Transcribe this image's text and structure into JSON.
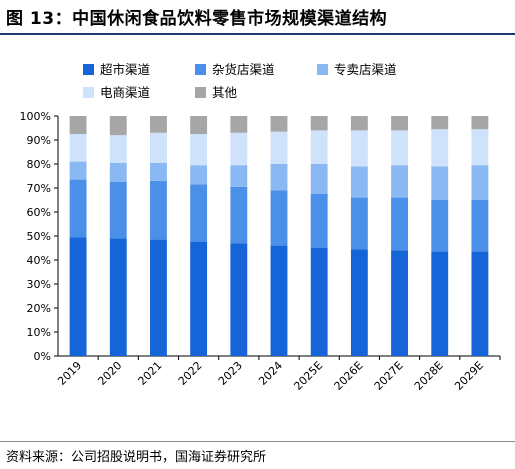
{
  "figure": {
    "title": "图 13：中国休闲食品饮料零售市场规模渠道结构",
    "source": "资料来源：公司招股说明书，国海证券研究所"
  },
  "chart_data": {
    "type": "bar",
    "stacked": true,
    "categories": [
      "2019",
      "2020",
      "2021",
      "2022",
      "2023",
      "2024",
      "2025E",
      "2026E",
      "2027E",
      "2028E",
      "2029E"
    ],
    "ylim": [
      0,
      100
    ],
    "y_ticks": [
      "0%",
      "10%",
      "20%",
      "30%",
      "40%",
      "50%",
      "60%",
      "70%",
      "80%",
      "90%",
      "100%"
    ],
    "legend_position": "top",
    "grid": false,
    "series": [
      {
        "name": "超市渠道",
        "color": "#1565d8",
        "values": [
          49.5,
          49.0,
          48.5,
          47.5,
          47.0,
          46.0,
          45.0,
          44.5,
          44.0,
          43.5,
          43.5
        ]
      },
      {
        "name": "杂货店渠道",
        "color": "#4a90e8",
        "values": [
          24.0,
          23.5,
          24.5,
          24.0,
          23.5,
          23.0,
          22.5,
          21.5,
          22.0,
          21.5,
          21.5
        ]
      },
      {
        "name": "专卖店渠道",
        "color": "#8ab8f2",
        "values": [
          7.5,
          8.0,
          7.5,
          8.0,
          9.0,
          11.0,
          12.5,
          13.0,
          13.5,
          14.0,
          14.5
        ]
      },
      {
        "name": "电商渠道",
        "color": "#cfe2fb",
        "values": [
          11.5,
          11.5,
          12.5,
          13.0,
          13.5,
          13.5,
          14.0,
          15.0,
          14.5,
          15.5,
          15.0
        ]
      },
      {
        "name": "其他",
        "color": "#a6a6a6",
        "values": [
          7.5,
          8.0,
          7.0,
          7.5,
          7.0,
          6.5,
          6.0,
          6.0,
          6.0,
          5.5,
          5.5
        ]
      }
    ]
  }
}
